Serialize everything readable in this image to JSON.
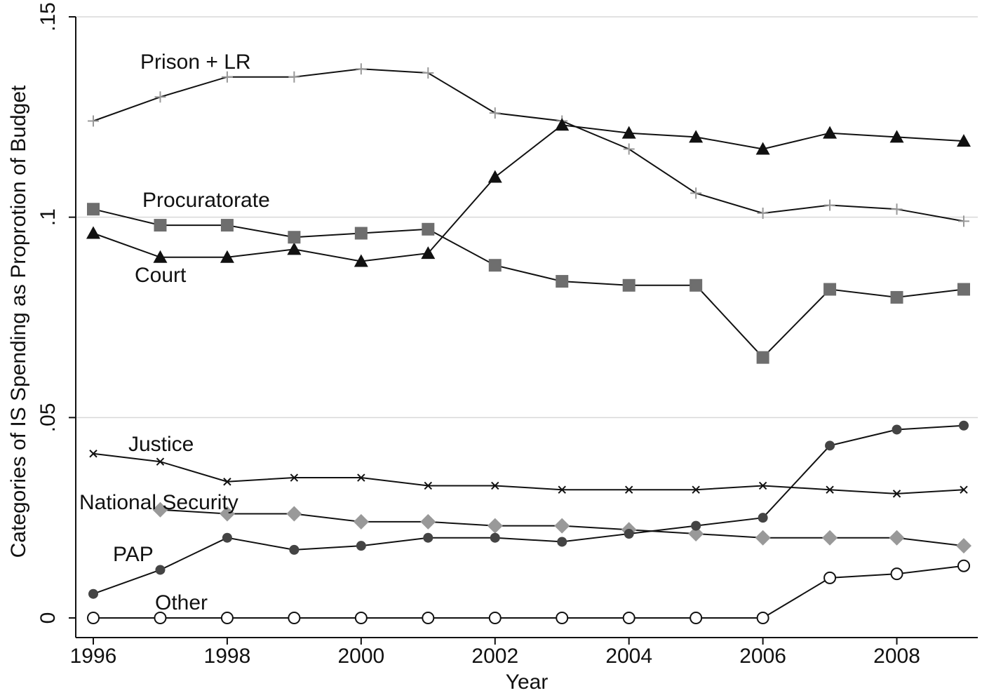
{
  "chart_data": {
    "type": "line",
    "title": "",
    "xlabel": "Year",
    "ylabel": "Categories of IS Spending as Proprotion of Budget",
    "xlim": [
      1996,
      2009
    ],
    "ylim": [
      0,
      0.15
    ],
    "x_ticks": [
      1996,
      1998,
      2000,
      2002,
      2004,
      2006,
      2008
    ],
    "x_tick_labels": [
      "1996",
      "1998",
      "2000",
      "2002",
      "2004",
      "2006",
      "2008"
    ],
    "y_ticks": [
      0,
      0.05,
      0.1,
      0.15
    ],
    "y_tick_labels": [
      "0",
      ".05",
      ".1",
      ".15"
    ],
    "grid": "horizontal",
    "legend": "none (series labeled inline)",
    "x": [
      1996,
      1997,
      1998,
      1999,
      2000,
      2001,
      2002,
      2003,
      2004,
      2005,
      2006,
      2007,
      2008,
      2009
    ],
    "series": [
      {
        "name": "Prison + LR",
        "marker": "plus",
        "color": "#999999",
        "values": [
          0.124,
          0.13,
          0.135,
          0.135,
          0.137,
          0.136,
          0.126,
          0.124,
          0.117,
          0.106,
          0.101,
          0.103,
          0.102,
          0.099
        ]
      },
      {
        "name": "Court",
        "marker": "triangle",
        "color": "#111111",
        "values": [
          0.096,
          0.09,
          0.09,
          0.092,
          0.089,
          0.091,
          0.11,
          0.123,
          0.121,
          0.12,
          0.117,
          0.121,
          0.12,
          0.119
        ]
      },
      {
        "name": "Procuratorate",
        "marker": "square",
        "color": "#6e6e6e",
        "values": [
          0.102,
          0.098,
          0.098,
          0.095,
          0.096,
          0.097,
          0.088,
          0.084,
          0.083,
          0.083,
          0.065,
          0.082,
          0.08,
          0.082
        ]
      },
      {
        "name": "Justice",
        "marker": "x",
        "color": "#111111",
        "values": [
          0.041,
          0.039,
          0.034,
          0.035,
          0.035,
          0.033,
          0.033,
          0.032,
          0.032,
          0.032,
          0.033,
          0.032,
          0.031,
          0.032
        ]
      },
      {
        "name": "National Security",
        "marker": "diamond",
        "color": "#999999",
        "values": [
          null,
          0.027,
          0.026,
          0.026,
          0.024,
          0.024,
          0.023,
          0.023,
          0.022,
          0.021,
          0.02,
          0.02,
          0.02,
          0.018
        ]
      },
      {
        "name": "PAP",
        "marker": "circle-filled",
        "color": "#444444",
        "values": [
          0.006,
          0.012,
          0.02,
          0.017,
          0.018,
          0.02,
          0.02,
          0.019,
          0.021,
          0.023,
          0.025,
          0.043,
          0.047,
          0.048
        ]
      },
      {
        "name": "Other",
        "marker": "circle-open",
        "color": "#111111",
        "values": [
          0.0,
          0.0,
          0.0,
          0.0,
          0.0,
          0.0,
          0.0,
          0.0,
          0.0,
          0.0,
          0.0,
          0.01,
          0.011,
          0.013
        ]
      }
    ]
  }
}
